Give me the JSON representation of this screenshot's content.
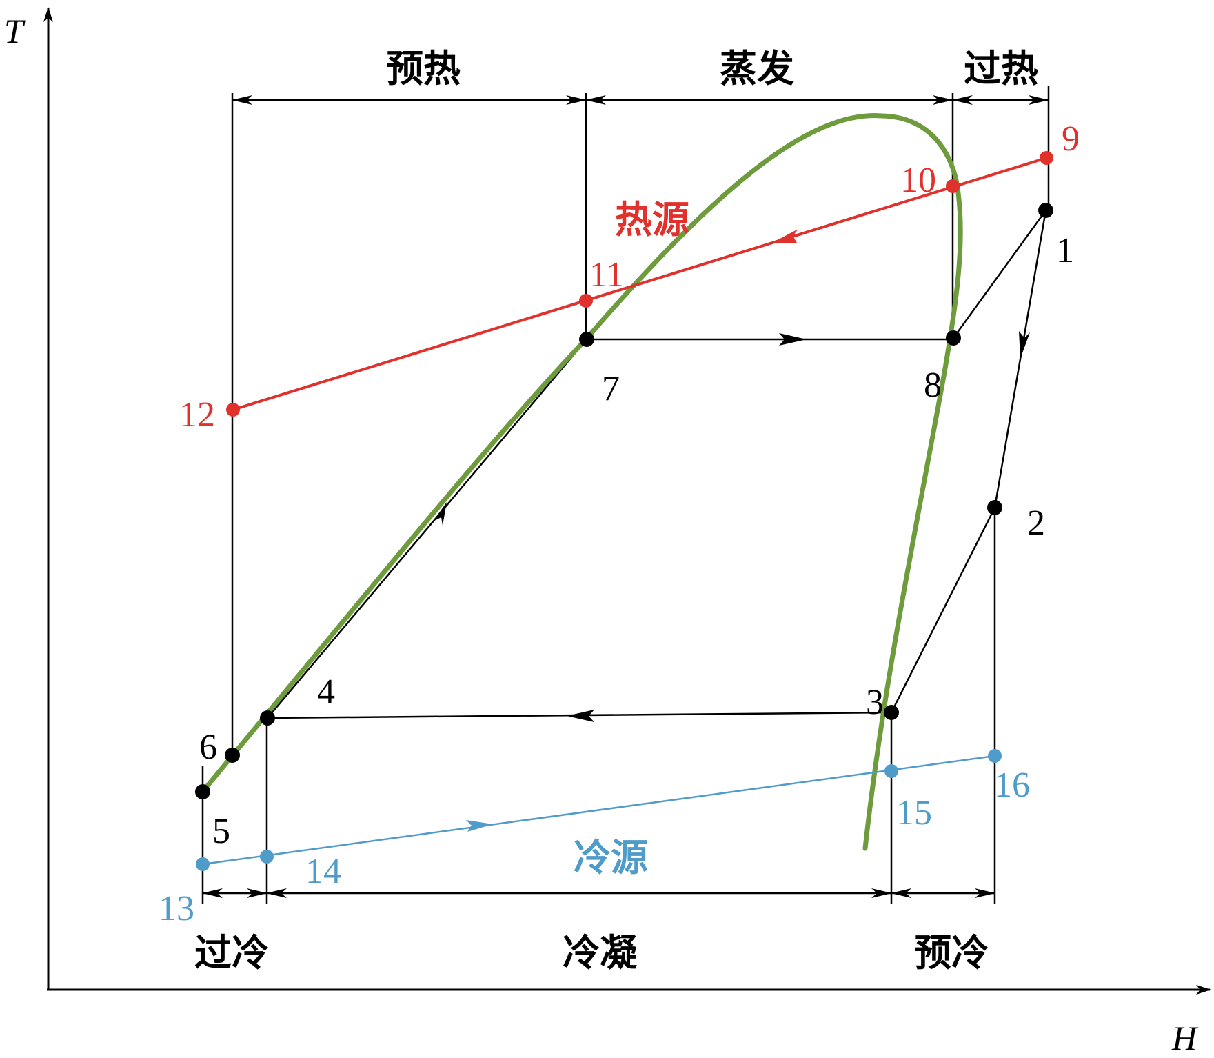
{
  "axes": {
    "y_label": "T",
    "x_label": "H"
  },
  "zones_top": {
    "preheat": "预热",
    "evaporate": "蒸发",
    "superheat": "过热"
  },
  "zones_bottom": {
    "subcool": "过冷",
    "condense": "冷凝",
    "precool": "预冷"
  },
  "streams": {
    "heat_source": "热源",
    "cold_source": "冷源"
  },
  "points": {
    "p1": "1",
    "p2": "2",
    "p3": "3",
    "p4": "4",
    "p5": "5",
    "p6": "6",
    "p7": "7",
    "p8": "8",
    "p9": "9",
    "p10": "10",
    "p11": "11",
    "p12": "12",
    "p13": "13",
    "p14": "14",
    "p15": "15",
    "p16": "16"
  },
  "colors": {
    "cycle": "#000000",
    "saturation_curve": "#6e9b3c",
    "heat_source": "#e0312c",
    "cold_source": "#4f9bca"
  }
}
